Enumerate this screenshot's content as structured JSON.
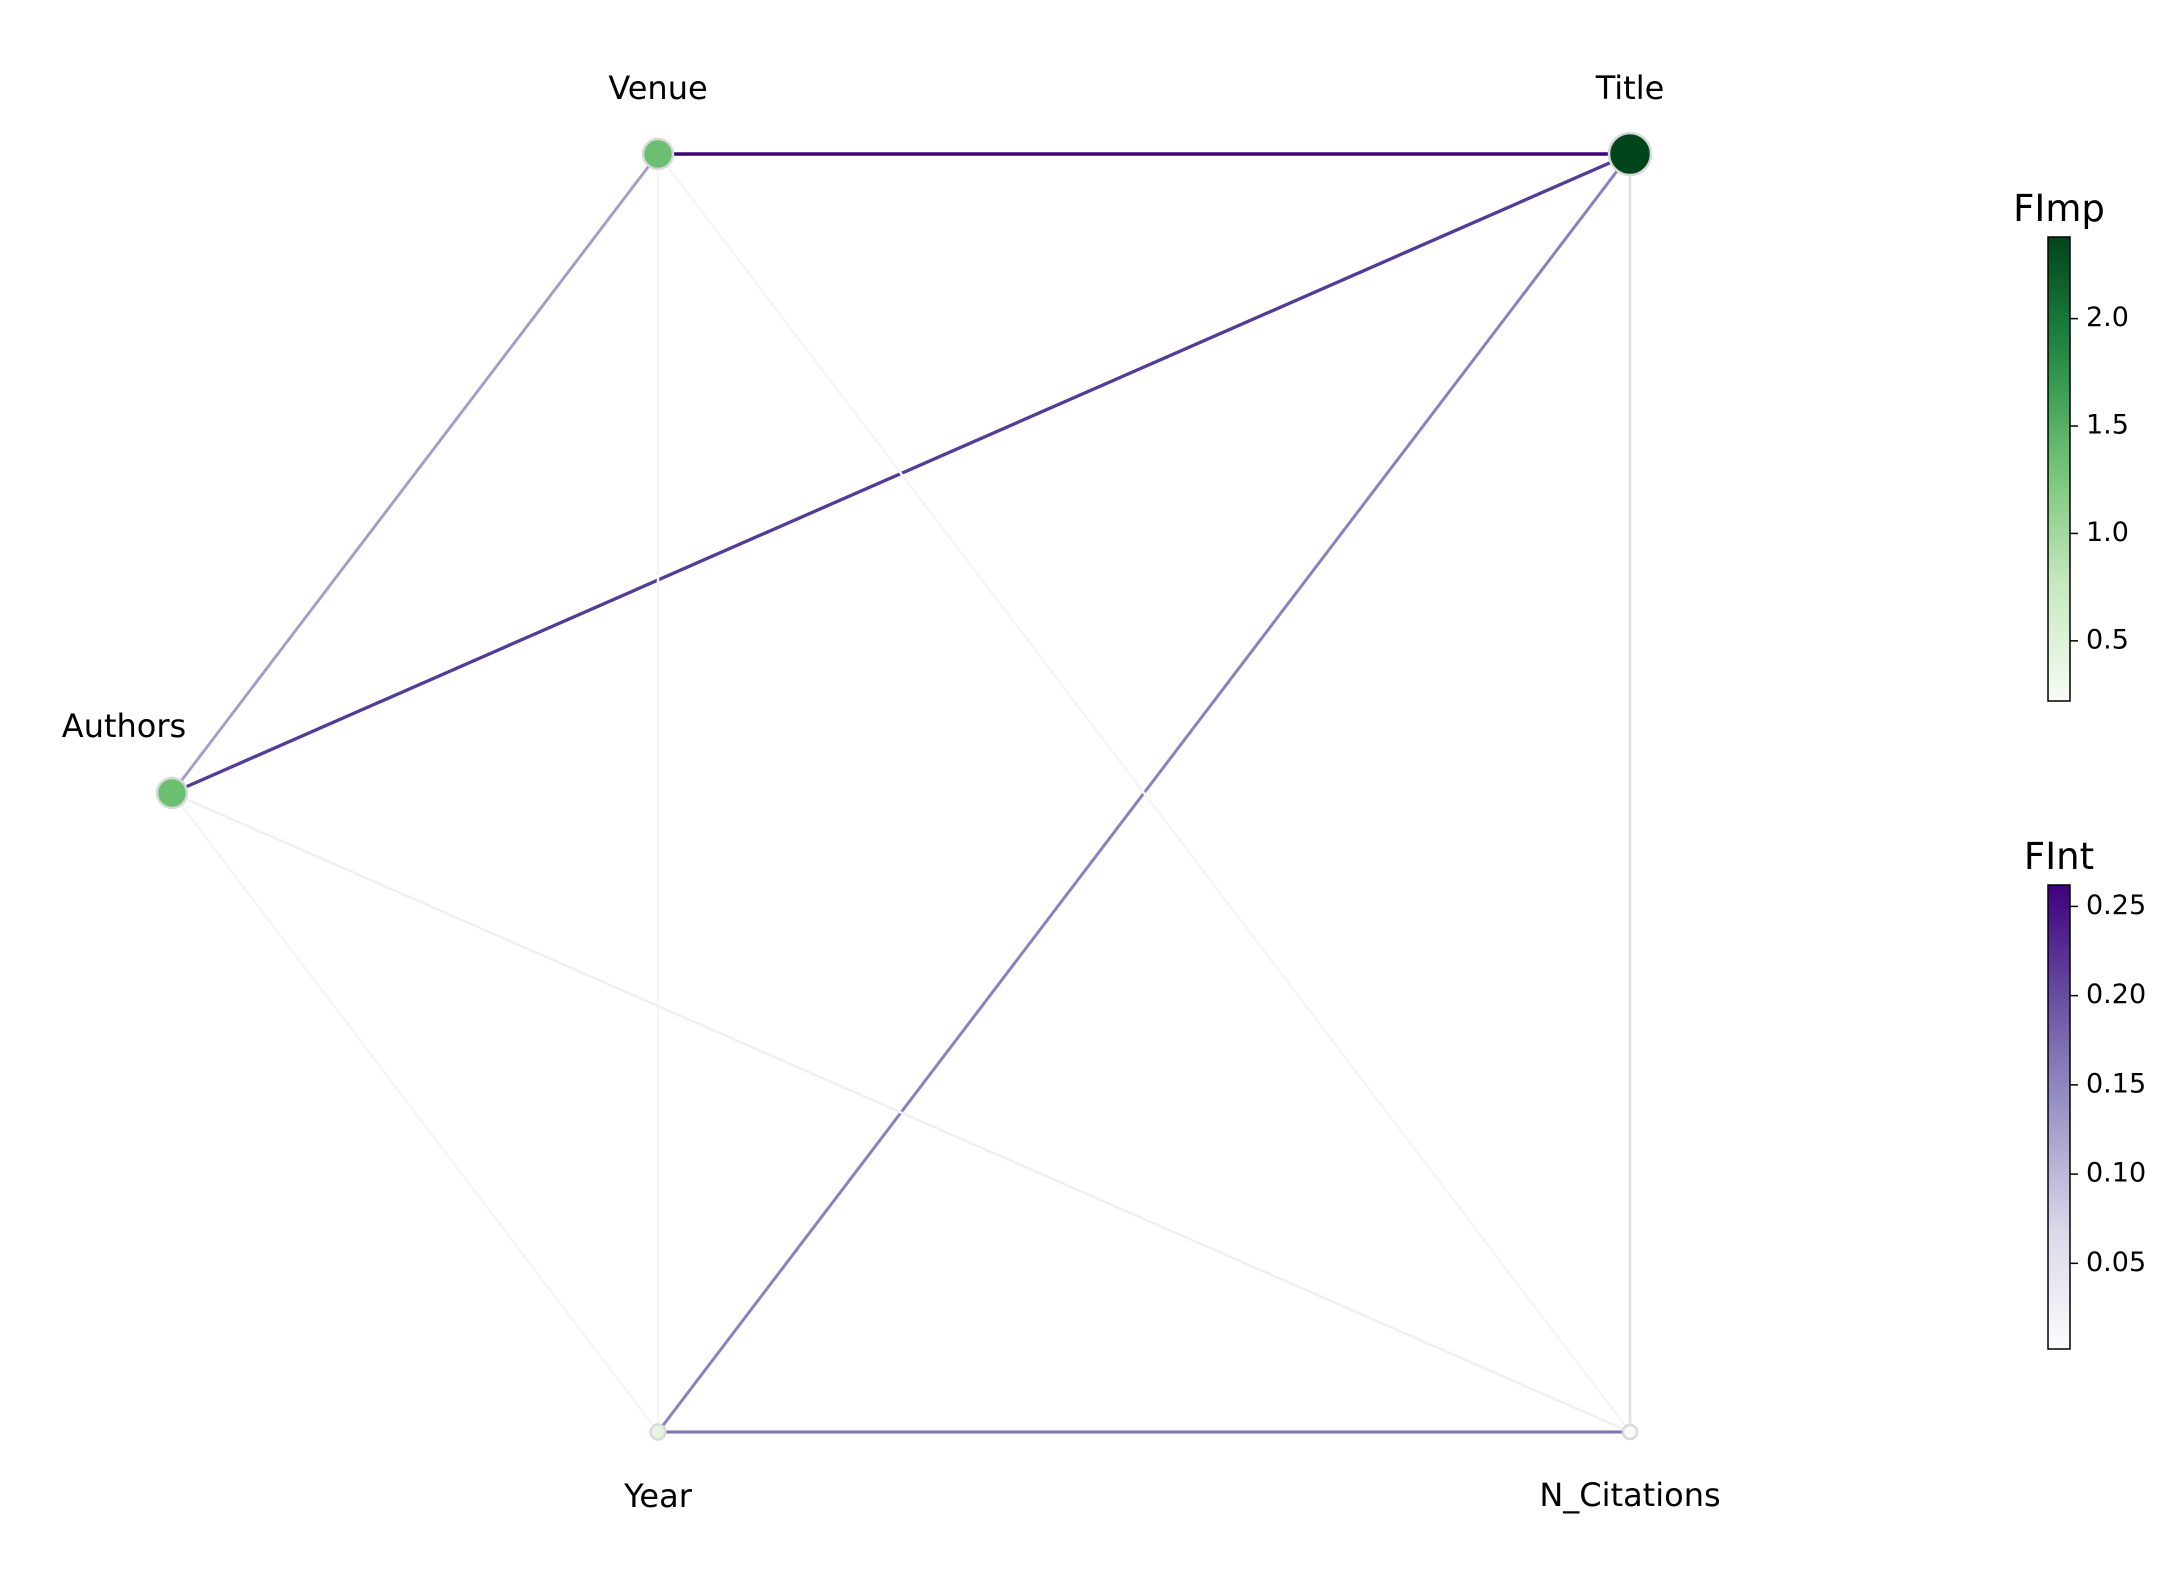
{
  "graph": {
    "nodes": [
      {
        "id": "Venue",
        "label": "Venue",
        "importance": 1.45,
        "color": "#6abf70"
      },
      {
        "id": "Title",
        "label": "Title",
        "importance": 2.38,
        "color": "#00441b"
      },
      {
        "id": "Authors",
        "label": "Authors",
        "importance": 1.45,
        "color": "#6abf70"
      },
      {
        "id": "Year",
        "label": "Year",
        "importance": 0.3,
        "color": "#e6f4e2"
      },
      {
        "id": "N_Citations",
        "label": "N_Citations",
        "importance": 0.22,
        "color": "#f7fcf5"
      }
    ],
    "edges": [
      {
        "source": "Venue",
        "target": "Title",
        "interaction": 0.26,
        "color": "#3f007d"
      },
      {
        "source": "Authors",
        "target": "Title",
        "interaction": 0.23,
        "color": "#533c96"
      },
      {
        "source": "Year",
        "target": "Title",
        "interaction": 0.15,
        "color": "#8983bd"
      },
      {
        "source": "Year",
        "target": "N_Citations",
        "interaction": 0.17,
        "color": "#7b72b2"
      },
      {
        "source": "Authors",
        "target": "Venue",
        "interaction": 0.12,
        "color": "#a19dc9"
      },
      {
        "source": "Title",
        "target": "N_Citations",
        "interaction": 0.04,
        "color": "#e0dfec"
      },
      {
        "source": "Authors",
        "target": "N_Citations",
        "interaction": 0.02,
        "color": "#efeff5"
      },
      {
        "source": "Authors",
        "target": "Year",
        "interaction": 0.01,
        "color": "#f5f4f9"
      },
      {
        "source": "Venue",
        "target": "Year",
        "interaction": 0.01,
        "color": "#f5f4f9"
      },
      {
        "source": "Venue",
        "target": "N_Citations",
        "interaction": 0.01,
        "color": "#f5f4f9"
      }
    ]
  },
  "colorbars": [
    {
      "title": "FImp",
      "min": 0.22,
      "max": 2.38,
      "ticks": [
        {
          "value": 0.5,
          "label": "0.5"
        },
        {
          "value": 1.0,
          "label": "1.0"
        },
        {
          "value": 1.5,
          "label": "1.5"
        },
        {
          "value": 2.0,
          "label": "2.0"
        }
      ],
      "colors": [
        "#f7fcf5",
        "#c7e9c0",
        "#74c476",
        "#238b45",
        "#00441b"
      ]
    },
    {
      "title": "FInt",
      "min": 0.002,
      "max": 0.262,
      "ticks": [
        {
          "value": 0.05,
          "label": "0.05"
        },
        {
          "value": 0.1,
          "label": "0.10"
        },
        {
          "value": 0.15,
          "label": "0.15"
        },
        {
          "value": 0.2,
          "label": "0.20"
        },
        {
          "value": 0.25,
          "label": "0.25"
        }
      ],
      "colors": [
        "#fcfbfd",
        "#dadaeb",
        "#9e9ac8",
        "#6a51a3",
        "#3f007d"
      ]
    }
  ]
}
